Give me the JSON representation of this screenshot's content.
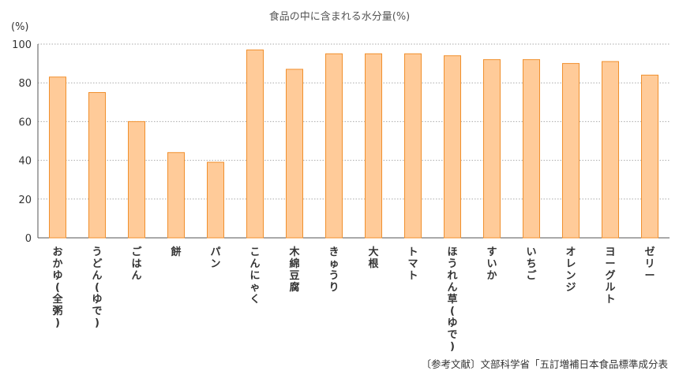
{
  "chart_data": {
    "type": "bar",
    "title": "食品の中に含まれる水分量(%)",
    "ylabel": "(%)",
    "ylim": [
      0,
      100
    ],
    "yticks": [
      0,
      20,
      40,
      60,
      80,
      100
    ],
    "grid": true,
    "categories": [
      "おかゆ(全粥)",
      "うどん(ゆで)",
      "ごはん",
      "餅",
      "パン",
      "こんにゃく",
      "木綿豆腐",
      "きゅうり",
      "大根",
      "トマト",
      "ほうれん草(ゆで)",
      "すいか",
      "いちご",
      "オレンジ",
      "ヨーグルト",
      "ゼリー"
    ],
    "values": [
      83,
      75,
      60,
      44,
      39,
      97,
      87,
      95,
      95,
      95,
      94,
      92,
      92,
      90,
      91,
      84
    ],
    "bar_fill": "#FFCB99",
    "bar_stroke": "#F0902E"
  },
  "source_note": "〔参考文献〕文部科学省「五訂増補日本食品標準成分表"
}
